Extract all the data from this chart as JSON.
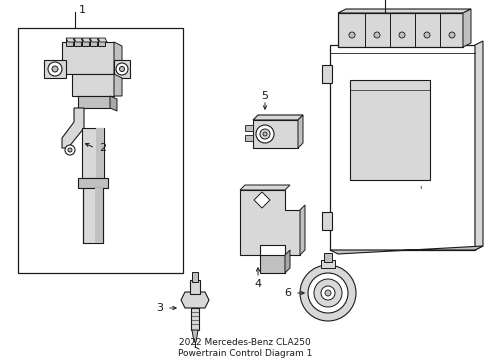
{
  "bg_color": "#ffffff",
  "line_color": "#1a1a1a",
  "title": "2022 Mercedes-Benz CLA250\nPowertrain Control Diagram 1",
  "figsize": [
    4.9,
    3.6
  ],
  "dpi": 100,
  "lw": 0.8,
  "gray_light": "#d8d8d8",
  "gray_mid": "#c0c0c0",
  "gray_dark": "#a8a8a8"
}
